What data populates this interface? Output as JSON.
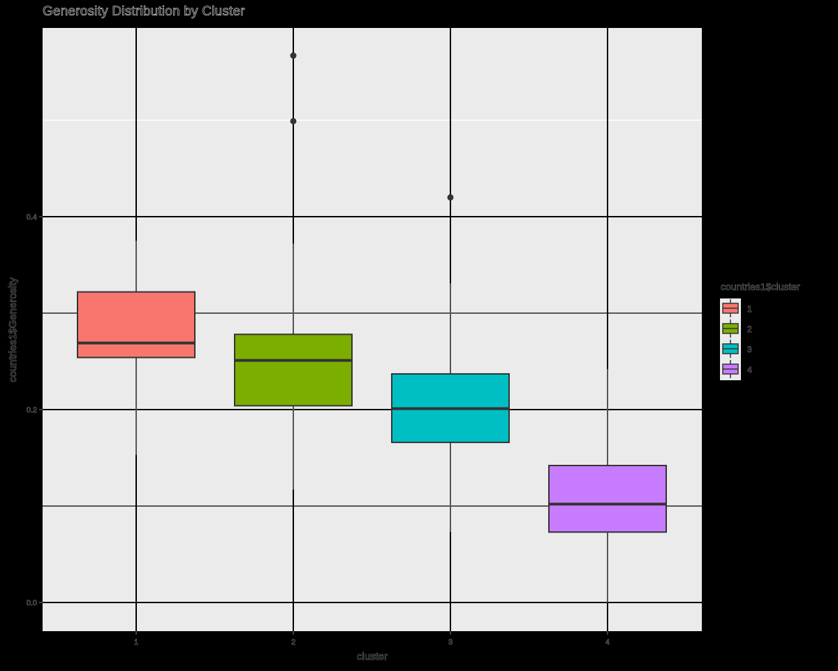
{
  "chart_data": {
    "type": "box",
    "title": "Generosity Distribution by Cluster",
    "xlabel": "cluster",
    "ylabel": "countries1$Generosity",
    "categories": [
      "1",
      "2",
      "3",
      "4"
    ],
    "yticks": [
      "0.0",
      "0.2",
      "0.4"
    ],
    "ytick_values": [
      0.0,
      0.2,
      0.4
    ],
    "ylim": [
      -0.03,
      0.595
    ],
    "grid": true,
    "legend": {
      "title": "countries1$cluster",
      "position": "right",
      "entries": [
        "1",
        "2",
        "3",
        "4"
      ]
    },
    "series": [
      {
        "name": "1",
        "color": "#F8766D",
        "whisker_low": 0.153,
        "q1": 0.254,
        "median": 0.269,
        "q3": 0.322,
        "whisker_high": 0.375,
        "outliers": []
      },
      {
        "name": "2",
        "color": "#7CAE00",
        "whisker_low": 0.117,
        "q1": 0.204,
        "median": 0.251,
        "q3": 0.278,
        "whisker_high": 0.372,
        "outliers": [
          0.499,
          0.567
        ]
      },
      {
        "name": "3",
        "color": "#00BFC4",
        "whisker_low": 0.073,
        "q1": 0.166,
        "median": 0.201,
        "q3": 0.237,
        "whisker_high": 0.331,
        "outliers": [
          0.42
        ]
      },
      {
        "name": "4",
        "color": "#C77CFF",
        "whisker_low": 0.0,
        "q1": 0.073,
        "median": 0.102,
        "q3": 0.142,
        "whisker_high": 0.242,
        "outliers": []
      }
    ]
  }
}
